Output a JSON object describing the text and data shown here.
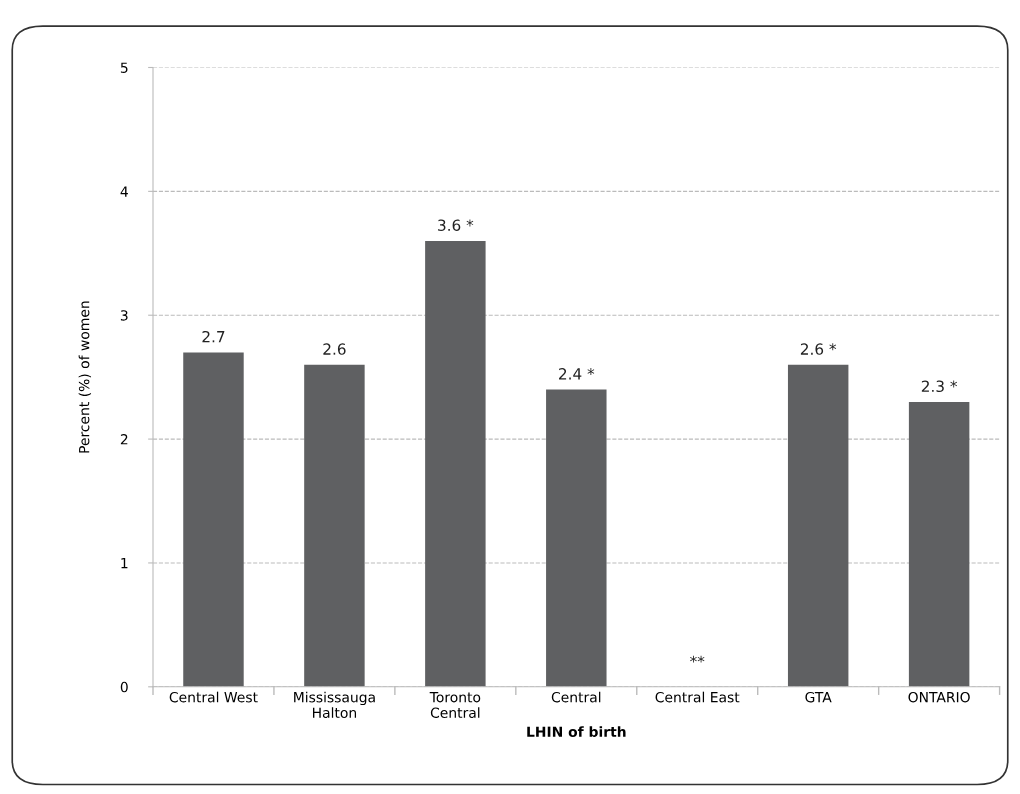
{
  "chart_data": {
    "type": "bar",
    "xlabel": "LHIN of birth",
    "ylabel": "Percent (%) of women",
    "categories": [
      "Central West",
      "Mississauga\nHalton",
      "Toronto\nCentral",
      "Central",
      "Central East",
      "GTA",
      "ONTARIO"
    ],
    "values": [
      2.7,
      2.6,
      3.6,
      2.4,
      null,
      2.6,
      2.3
    ],
    "value_labels": [
      "2.7",
      "2.6",
      "3.6 *",
      "2.4 *",
      "**",
      "2.6 *",
      "2.3 *"
    ],
    "color": "#5f6062",
    "ylim": [
      0,
      5
    ],
    "yticks": [
      0,
      1,
      2,
      3,
      4,
      5
    ],
    "grid": "y"
  }
}
